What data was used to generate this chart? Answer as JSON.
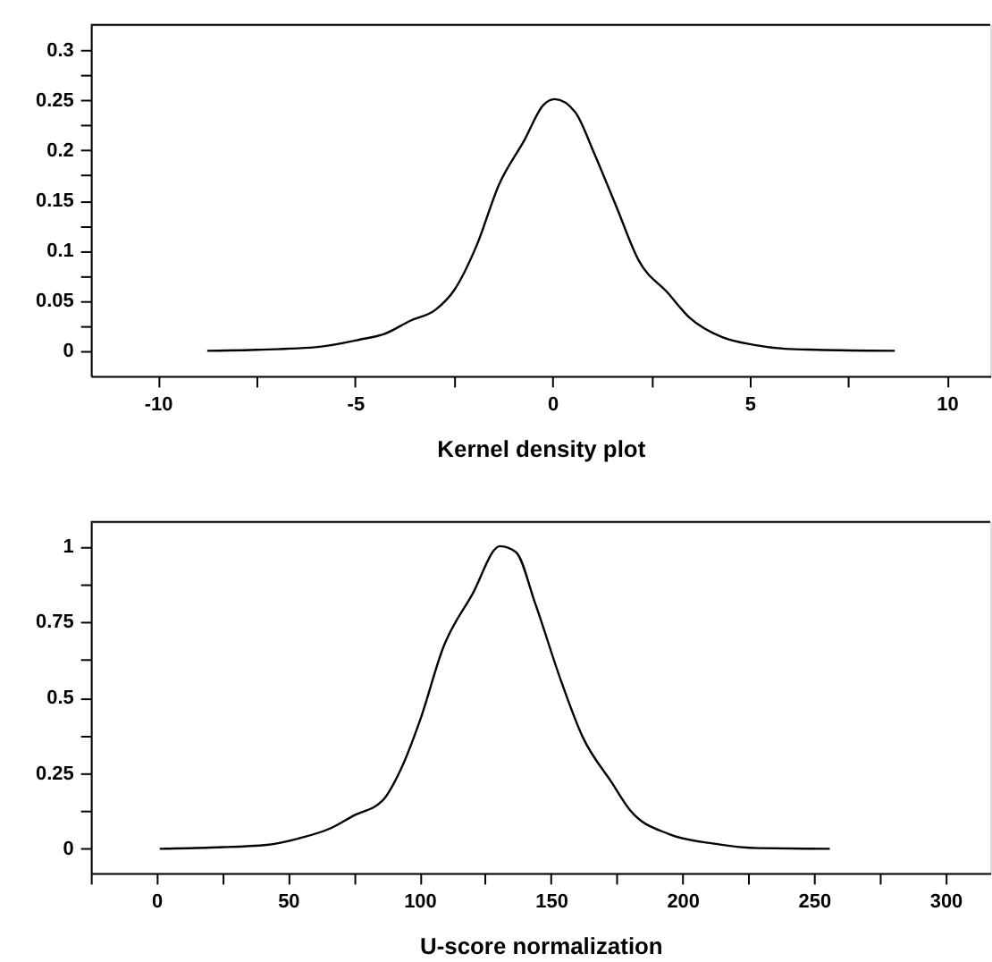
{
  "chart_data": [
    {
      "type": "line",
      "xlabel": "Kernel density plot",
      "x": [
        -8.75,
        -7.5,
        -5.9,
        -4.9,
        -4.25,
        -3.6,
        -2.96,
        -2.48,
        -1.92,
        -1.35,
        -0.71,
        -0.23,
        0.06,
        0.58,
        1.06,
        1.63,
        2.19,
        2.92,
        3.48,
        4.28,
        5.09,
        5.9,
        6.7,
        8.68
      ],
      "series": [
        {
          "color": "#000000",
          "values": [
            0,
            0.001,
            0.004,
            0.011,
            0.017,
            0.03,
            0.041,
            0.061,
            0.105,
            0.166,
            0.21,
            0.245,
            0.251,
            0.238,
            0.197,
            0.143,
            0.09,
            0.058,
            0.033,
            0.014,
            0.006,
            0.002,
            0.001,
            0
          ]
        }
      ],
      "xlim": [
        -11.7,
        11.1
      ],
      "ylim": [
        -0.025,
        0.325
      ],
      "xticks": [
        -10,
        {
          "value": -7.5,
          "label": null
        },
        -5,
        {
          "value": -2.5,
          "label": null
        },
        0,
        {
          "value": 2.5,
          "label": null
        },
        5,
        {
          "value": 7.5,
          "label": null
        },
        10
      ],
      "yticks": [
        0,
        {
          "value": 0.025,
          "label": null
        },
        0.05,
        {
          "value": 0.075,
          "label": null
        },
        0.1,
        {
          "value": 0.125,
          "label": null
        },
        0.15,
        {
          "value": 0.175,
          "label": null
        },
        0.2,
        {
          "value": 0.225,
          "label": null
        },
        0.25,
        {
          "value": 0.275,
          "label": null
        },
        0.3
      ],
      "line_style": "solid",
      "marker": "none"
    },
    {
      "type": "line",
      "xlabel": "U-score normalization",
      "x": [
        1.2,
        20.6,
        42,
        54,
        66.5,
        75,
        86,
        93,
        100.4,
        109,
        120,
        130.6,
        136.7,
        144,
        153.6,
        162,
        173,
        180,
        195,
        212,
        229,
        256
      ],
      "series": [
        {
          "color": "#000000",
          "values": [
            0,
            0.004,
            0.013,
            0.034,
            0.069,
            0.11,
            0.16,
            0.265,
            0.43,
            0.665,
            0.84,
            1.0,
            0.98,
            0.81,
            0.56,
            0.37,
            0.22,
            0.128,
            0.048,
            0.017,
            0.002,
            0
          ]
        }
      ],
      "xlim": [
        -25,
        317
      ],
      "ylim": [
        -0.08,
        1.08
      ],
      "xticks": [
        {
          "value": -25,
          "label": null
        },
        0,
        {
          "value": 25,
          "label": null
        },
        50,
        {
          "value": 75,
          "label": null
        },
        100,
        {
          "value": 125,
          "label": null
        },
        150,
        {
          "value": 175,
          "label": null
        },
        200,
        {
          "value": 225,
          "label": null
        },
        250,
        {
          "value": 275,
          "label": null
        },
        300
      ],
      "yticks": [
        0,
        {
          "value": 0.125,
          "label": null
        },
        0.25,
        {
          "value": 0.375,
          "label": null
        },
        0.5,
        {
          "value": 0.625,
          "label": null
        },
        0.75,
        {
          "value": 0.875,
          "label": null
        },
        1
      ],
      "line_style": "solid",
      "marker": "none"
    }
  ]
}
